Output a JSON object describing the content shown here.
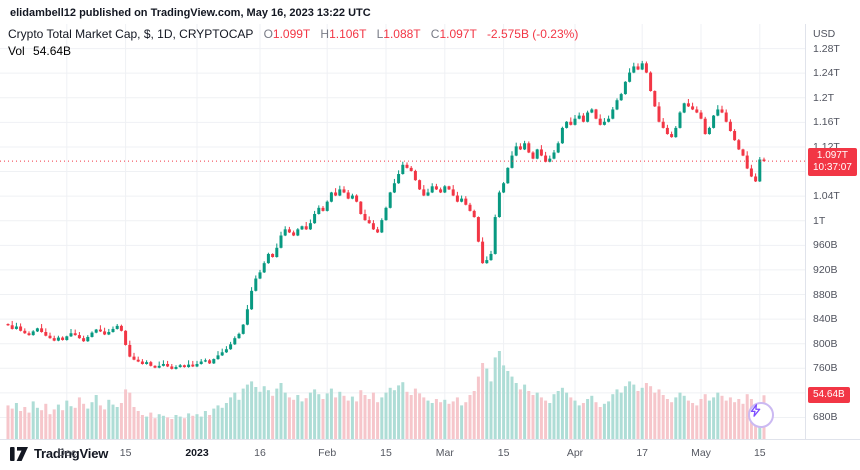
{
  "header": {
    "publish_text": "elidambell12 published on TradingView.com, May 16, 2023 13:22 UTC"
  },
  "legend": {
    "title": "Crypto Total Market Cap, $, 1D, CRYPTOCAP",
    "o_label": "O",
    "o_value": "1.099T",
    "h_label": "H",
    "h_value": "1.106T",
    "l_label": "L",
    "l_value": "1.088T",
    "c_label": "C",
    "c_value": "1.097T",
    "change": "-2.575B (-0.23%)",
    "vol_label": "Vol",
    "vol_value": "54.64B"
  },
  "axes": {
    "currency": "USD"
  },
  "price_badge": {
    "price": "1.097T",
    "countdown": "10:37:07"
  },
  "vol_badge": {
    "value": "54.64B"
  },
  "footer": {
    "brand": "TradingView"
  },
  "colors": {
    "up": "#089981",
    "down": "#f23645",
    "vol_up": "#aeddd6",
    "vol_down": "#f6c6cb",
    "grid": "#eff1f4",
    "badge": "#f23645",
    "axis_text": "#50535e",
    "text": "#131722"
  },
  "chart_data": {
    "type": "candlestick+volume",
    "title": "Crypto Total Market Cap",
    "symbol": "CRYPTOCAP",
    "interval": "1D",
    "unit": "USD (T = trillions, B = billions)",
    "current_price": 1097,
    "current_volume": 54.64,
    "y_axis": {
      "min": 645,
      "max": 1320,
      "labels": [
        {
          "text": "1.28T",
          "value": 1280
        },
        {
          "text": "1.24T",
          "value": 1240
        },
        {
          "text": "1.2T",
          "value": 1200
        },
        {
          "text": "1.16T",
          "value": 1160
        },
        {
          "text": "1.12T",
          "value": 1120
        },
        {
          "text": "1.08T",
          "value": 1080
        },
        {
          "text": "1.04T",
          "value": 1040
        },
        {
          "text": "1T",
          "value": 1000
        },
        {
          "text": "960B",
          "value": 960
        },
        {
          "text": "920B",
          "value": 920
        },
        {
          "text": "880B",
          "value": 880
        },
        {
          "text": "840B",
          "value": 840
        },
        {
          "text": "800B",
          "value": 800
        },
        {
          "text": "760B",
          "value": 760
        },
        {
          "text": "720B",
          "value": 720
        },
        {
          "text": "680B",
          "value": 680
        }
      ]
    },
    "x_ticks": [
      {
        "label": "Dec",
        "index": 14,
        "major": false
      },
      {
        "label": "15",
        "index": 28,
        "major": false
      },
      {
        "label": "2023",
        "index": 45,
        "major": true
      },
      {
        "label": "16",
        "index": 60,
        "major": false
      },
      {
        "label": "Feb",
        "index": 76,
        "major": false
      },
      {
        "label": "15",
        "index": 90,
        "major": false
      },
      {
        "label": "Mar",
        "index": 104,
        "major": false
      },
      {
        "label": "15",
        "index": 118,
        "major": false
      },
      {
        "label": "Apr",
        "index": 135,
        "major": false
      },
      {
        "label": "17",
        "index": 151,
        "major": false
      },
      {
        "label": "May",
        "index": 165,
        "major": false
      },
      {
        "label": "15",
        "index": 179,
        "major": false
      }
    ],
    "closes": [
      830,
      824,
      828,
      821,
      817,
      814,
      820,
      825,
      819,
      813,
      809,
      805,
      810,
      806,
      812,
      817,
      814,
      809,
      804,
      811,
      818,
      823,
      820,
      815,
      819,
      824,
      829,
      821,
      798,
      779,
      774,
      771,
      767,
      770,
      764,
      761,
      764,
      767,
      763,
      759,
      762,
      765,
      762,
      766,
      763,
      767,
      771,
      773,
      768,
      775,
      781,
      786,
      791,
      799,
      809,
      816,
      831,
      856,
      886,
      906,
      916,
      931,
      946,
      941,
      956,
      976,
      986,
      981,
      976,
      986,
      991,
      986,
      996,
      1011,
      1021,
      1016,
      1031,
      1046,
      1041,
      1051,
      1046,
      1036,
      1041,
      1031,
      1011,
      1001,
      996,
      986,
      981,
      1001,
      1021,
      1046,
      1061,
      1076,
      1091,
      1086,
      1081,
      1066,
      1051,
      1041,
      1046,
      1056,
      1051,
      1046,
      1056,
      1051,
      1041,
      1031,
      1036,
      1026,
      1016,
      1006,
      966,
      931,
      936,
      946,
      1006,
      1046,
      1061,
      1086,
      1106,
      1121,
      1116,
      1126,
      1111,
      1101,
      1116,
      1106,
      1096,
      1101,
      1111,
      1126,
      1151,
      1161,
      1156,
      1166,
      1171,
      1161,
      1176,
      1181,
      1166,
      1156,
      1161,
      1166,
      1181,
      1196,
      1206,
      1226,
      1241,
      1251,
      1246,
      1256,
      1241,
      1211,
      1186,
      1161,
      1151,
      1141,
      1136,
      1151,
      1176,
      1191,
      1186,
      1181,
      1176,
      1166,
      1141,
      1151,
      1171,
      1181,
      1176,
      1161,
      1146,
      1131,
      1116,
      1106,
      1085,
      1072,
      1064,
      1099.6,
      1097
    ],
    "volumes": [
      42,
      38,
      45,
      35,
      40,
      33,
      47,
      39,
      36,
      44,
      31,
      37,
      43,
      36,
      48,
      41,
      39,
      52,
      44,
      38,
      46,
      55,
      42,
      37,
      49,
      43,
      40,
      45,
      62,
      58,
      40,
      35,
      30,
      28,
      33,
      26,
      31,
      29,
      27,
      25,
      30,
      28,
      26,
      32,
      29,
      31,
      28,
      35,
      30,
      38,
      42,
      39,
      45,
      52,
      58,
      49,
      63,
      68,
      72,
      65,
      59,
      66,
      61,
      54,
      63,
      70,
      58,
      52,
      49,
      55,
      47,
      51,
      58,
      62,
      56,
      50,
      57,
      63,
      52,
      59,
      54,
      48,
      53,
      47,
      61,
      55,
      50,
      58,
      46,
      52,
      58,
      64,
      61,
      67,
      71,
      59,
      55,
      63,
      57,
      52,
      48,
      45,
      50,
      46,
      49,
      44,
      47,
      52,
      42,
      46,
      55,
      60,
      78,
      95,
      88,
      72,
      102,
      110,
      92,
      85,
      78,
      70,
      62,
      68,
      60,
      55,
      58,
      52,
      48,
      45,
      56,
      60,
      64,
      58,
      52,
      48,
      42,
      45,
      50,
      54,
      46,
      40,
      44,
      47,
      56,
      62,
      58,
      66,
      72,
      68,
      60,
      64,
      70,
      66,
      58,
      62,
      55,
      50,
      46,
      52,
      58,
      54,
      48,
      45,
      42,
      50,
      56,
      48,
      52,
      58,
      54,
      48,
      52,
      46,
      50,
      44,
      56,
      50,
      42,
      38,
      54.64
    ]
  }
}
